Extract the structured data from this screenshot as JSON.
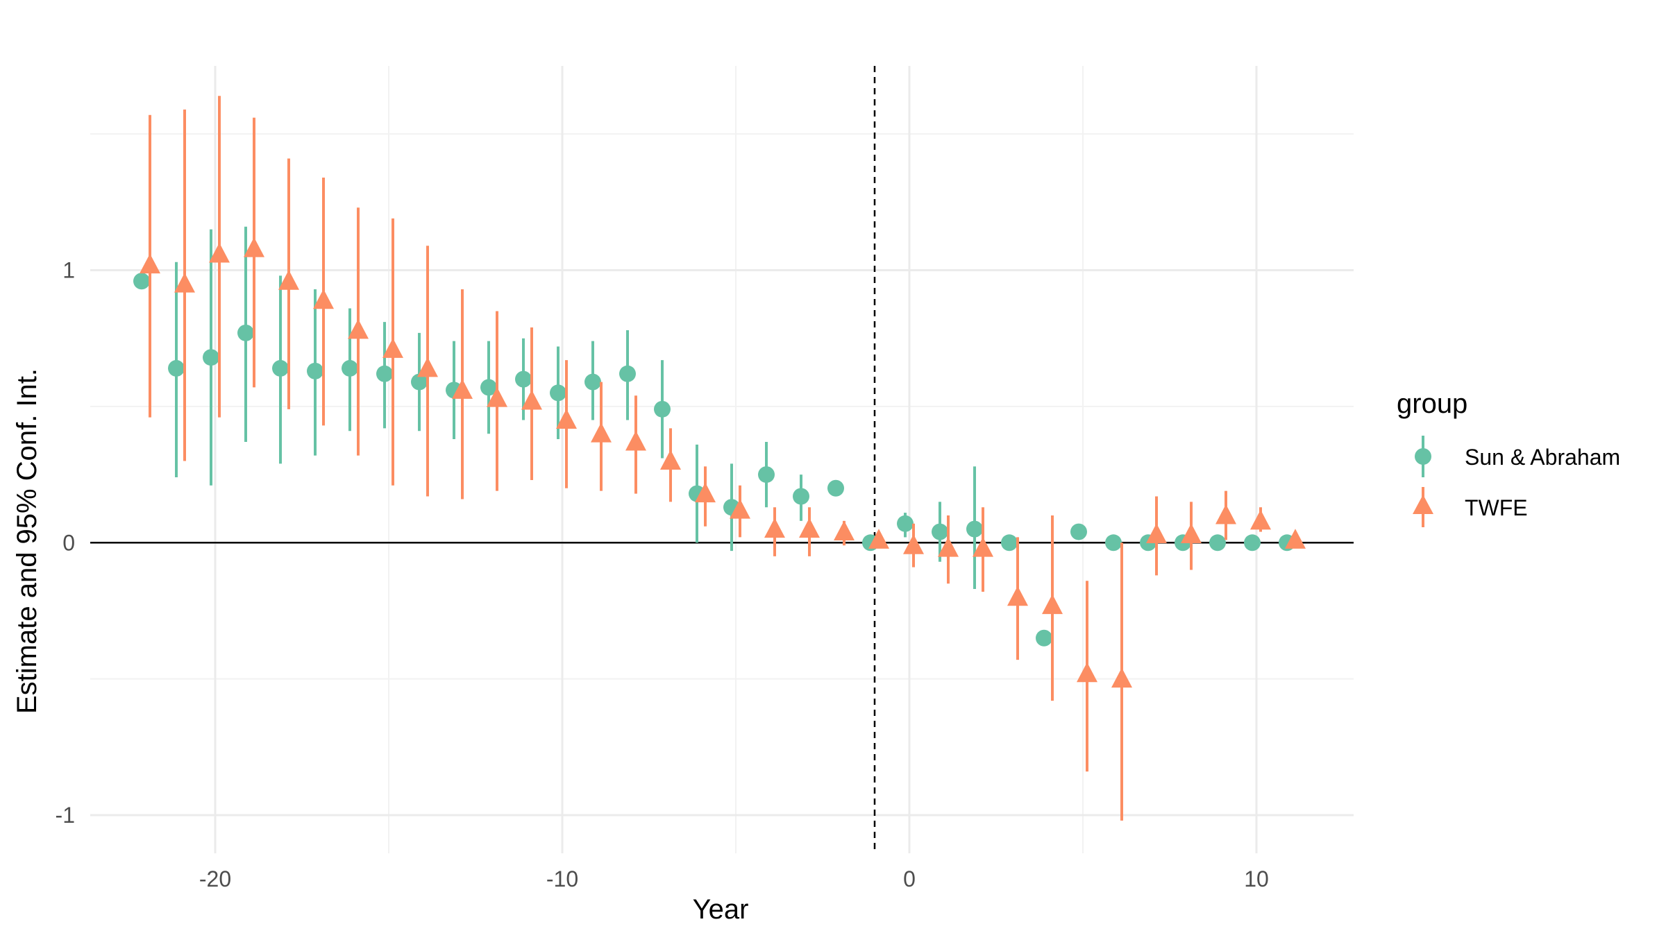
{
  "chart_data": {
    "type": "scatter",
    "title": "",
    "xlabel": "Year",
    "ylabel": "Estimate and 95% Conf. Int.",
    "xlim": [
      -23.6,
      12.8
    ],
    "ylim": [
      -1.14,
      1.75
    ],
    "x_ticks": [
      -20,
      -10,
      0,
      10
    ],
    "x_tick_labels": [
      "-20",
      "-10",
      "0",
      "10"
    ],
    "y_ticks": [
      -1,
      0,
      1
    ],
    "y_tick_labels": [
      "-1",
      "0",
      "1"
    ],
    "grid": true,
    "reference_hline": 0,
    "reference_vline": -1,
    "legend": {
      "title": "group",
      "position": "right",
      "entries": [
        "Sun & Abraham",
        "TWFE"
      ]
    },
    "colors": {
      "sun_abraham": "#66C2A5",
      "twfe": "#FC8D62"
    },
    "series": [
      {
        "name": "Sun & Abraham",
        "marker": "circle",
        "color": "#66C2A5",
        "points": [
          {
            "x": -22,
            "y": 0.96,
            "lo": null,
            "hi": null
          },
          {
            "x": -21,
            "y": 0.64,
            "lo": 0.24,
            "hi": 1.03
          },
          {
            "x": -20,
            "y": 0.68,
            "lo": 0.21,
            "hi": 1.15
          },
          {
            "x": -19,
            "y": 0.77,
            "lo": 0.37,
            "hi": 1.16
          },
          {
            "x": -18,
            "y": 0.64,
            "lo": 0.29,
            "hi": 0.98
          },
          {
            "x": -17,
            "y": 0.63,
            "lo": 0.32,
            "hi": 0.93
          },
          {
            "x": -16,
            "y": 0.64,
            "lo": 0.41,
            "hi": 0.86
          },
          {
            "x": -15,
            "y": 0.62,
            "lo": 0.42,
            "hi": 0.81
          },
          {
            "x": -14,
            "y": 0.59,
            "lo": 0.41,
            "hi": 0.77
          },
          {
            "x": -13,
            "y": 0.56,
            "lo": 0.38,
            "hi": 0.74
          },
          {
            "x": -12,
            "y": 0.57,
            "lo": 0.4,
            "hi": 0.74
          },
          {
            "x": -11,
            "y": 0.6,
            "lo": 0.45,
            "hi": 0.75
          },
          {
            "x": -10,
            "y": 0.55,
            "lo": 0.38,
            "hi": 0.72
          },
          {
            "x": -9,
            "y": 0.59,
            "lo": 0.45,
            "hi": 0.74
          },
          {
            "x": -8,
            "y": 0.62,
            "lo": 0.45,
            "hi": 0.78
          },
          {
            "x": -7,
            "y": 0.49,
            "lo": 0.31,
            "hi": 0.67
          },
          {
            "x": -6,
            "y": 0.18,
            "lo": 0.0,
            "hi": 0.36
          },
          {
            "x": -5,
            "y": 0.13,
            "lo": -0.03,
            "hi": 0.29
          },
          {
            "x": -4,
            "y": 0.25,
            "lo": 0.13,
            "hi": 0.37
          },
          {
            "x": -3,
            "y": 0.17,
            "lo": 0.08,
            "hi": 0.25
          },
          {
            "x": -2,
            "y": 0.2,
            "lo": null,
            "hi": null
          },
          {
            "x": -1,
            "y": 0.0,
            "lo": null,
            "hi": null
          },
          {
            "x": 0,
            "y": 0.07,
            "lo": 0.02,
            "hi": 0.11
          },
          {
            "x": 1,
            "y": 0.04,
            "lo": -0.07,
            "hi": 0.15
          },
          {
            "x": 2,
            "y": 0.05,
            "lo": -0.17,
            "hi": 0.28
          },
          {
            "x": 3,
            "y": 0.0,
            "lo": null,
            "hi": null
          },
          {
            "x": 4,
            "y": -0.35,
            "lo": null,
            "hi": null
          },
          {
            "x": 5,
            "y": 0.04,
            "lo": null,
            "hi": null
          },
          {
            "x": 6,
            "y": 0.0,
            "lo": null,
            "hi": null
          },
          {
            "x": 7,
            "y": 0.0,
            "lo": null,
            "hi": null
          },
          {
            "x": 8,
            "y": 0.0,
            "lo": null,
            "hi": null
          },
          {
            "x": 9,
            "y": 0.0,
            "lo": null,
            "hi": null
          },
          {
            "x": 10,
            "y": 0.0,
            "lo": null,
            "hi": null
          },
          {
            "x": 11,
            "y": 0.0,
            "lo": null,
            "hi": null
          }
        ]
      },
      {
        "name": "TWFE",
        "marker": "triangle",
        "color": "#FC8D62",
        "points": [
          {
            "x": -22,
            "y": 1.02,
            "lo": 0.46,
            "hi": 1.57
          },
          {
            "x": -21,
            "y": 0.95,
            "lo": 0.3,
            "hi": 1.59
          },
          {
            "x": -20,
            "y": 1.06,
            "lo": 0.46,
            "hi": 1.64
          },
          {
            "x": -19,
            "y": 1.08,
            "lo": 0.57,
            "hi": 1.56
          },
          {
            "x": -18,
            "y": 0.96,
            "lo": 0.49,
            "hi": 1.41
          },
          {
            "x": -17,
            "y": 0.89,
            "lo": 0.43,
            "hi": 1.34
          },
          {
            "x": -16,
            "y": 0.78,
            "lo": 0.32,
            "hi": 1.23
          },
          {
            "x": -15,
            "y": 0.71,
            "lo": 0.21,
            "hi": 1.19
          },
          {
            "x": -14,
            "y": 0.64,
            "lo": 0.17,
            "hi": 1.09
          },
          {
            "x": -13,
            "y": 0.56,
            "lo": 0.16,
            "hi": 0.93
          },
          {
            "x": -12,
            "y": 0.53,
            "lo": 0.19,
            "hi": 0.85
          },
          {
            "x": -11,
            "y": 0.52,
            "lo": 0.23,
            "hi": 0.79
          },
          {
            "x": -10,
            "y": 0.45,
            "lo": 0.2,
            "hi": 0.67
          },
          {
            "x": -9,
            "y": 0.4,
            "lo": 0.19,
            "hi": 0.59
          },
          {
            "x": -8,
            "y": 0.37,
            "lo": 0.18,
            "hi": 0.54
          },
          {
            "x": -7,
            "y": 0.3,
            "lo": 0.15,
            "hi": 0.42
          },
          {
            "x": -6,
            "y": 0.18,
            "lo": 0.06,
            "hi": 0.28
          },
          {
            "x": -5,
            "y": 0.12,
            "lo": 0.02,
            "hi": 0.21
          },
          {
            "x": -4,
            "y": 0.05,
            "lo": -0.05,
            "hi": 0.13
          },
          {
            "x": -3,
            "y": 0.05,
            "lo": -0.05,
            "hi": 0.13
          },
          {
            "x": -2,
            "y": 0.04,
            "lo": -0.01,
            "hi": 0.08
          },
          {
            "x": -1,
            "y": 0.01,
            "lo": null,
            "hi": null
          },
          {
            "x": 0,
            "y": -0.01,
            "lo": -0.09,
            "hi": 0.07
          },
          {
            "x": 1,
            "y": -0.02,
            "lo": -0.15,
            "hi": 0.1
          },
          {
            "x": 2,
            "y": -0.02,
            "lo": -0.18,
            "hi": 0.13
          },
          {
            "x": 3,
            "y": -0.2,
            "lo": -0.43,
            "hi": 0.02
          },
          {
            "x": 4,
            "y": -0.23,
            "lo": -0.58,
            "hi": 0.1
          },
          {
            "x": 5,
            "y": -0.48,
            "lo": -0.84,
            "hi": -0.14
          },
          {
            "x": 6,
            "y": -0.5,
            "lo": -1.02,
            "hi": 0.0
          },
          {
            "x": 7,
            "y": 0.03,
            "lo": -0.12,
            "hi": 0.17
          },
          {
            "x": 8,
            "y": 0.03,
            "lo": -0.1,
            "hi": 0.15
          },
          {
            "x": 9,
            "y": 0.1,
            "lo": 0.01,
            "hi": 0.19
          },
          {
            "x": 10,
            "y": 0.08,
            "lo": 0.04,
            "hi": 0.13
          },
          {
            "x": 11,
            "y": 0.01,
            "lo": null,
            "hi": null
          }
        ]
      }
    ]
  }
}
